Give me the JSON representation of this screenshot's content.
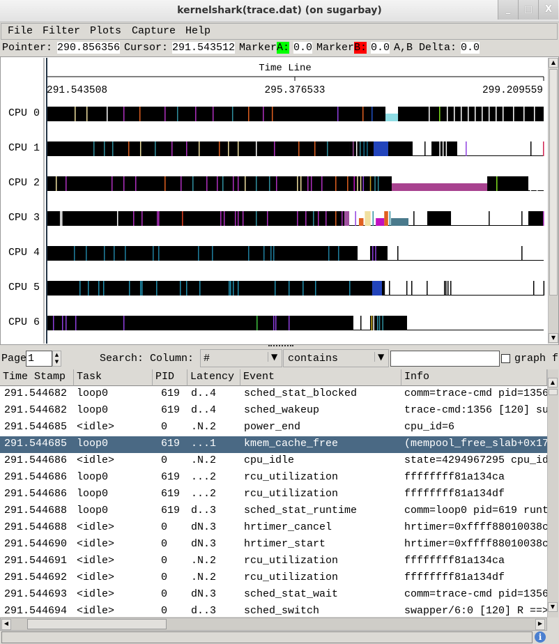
{
  "window": {
    "title": "kernelshark(trace.dat) (on sugarbay)",
    "minimize": "_",
    "maximize": "□",
    "close": "X"
  },
  "menu": [
    "File",
    "Filter",
    "Plots",
    "Capture",
    "Help"
  ],
  "info": {
    "pointer_label": "Pointer:",
    "pointer": "290.856356",
    "cursor_label": "Cursor:",
    "cursor": "291.543512",
    "markerA_label": "Marker",
    "markerA_tag": "A:",
    "markerA": "0.0",
    "markerB_label": "Marker",
    "markerB_tag": "B:",
    "markerB": "0.0",
    "delta_label": "A,B Delta:",
    "delta": "0.0",
    "markerA_color": "#00ff00",
    "markerB_color": "#ff0000"
  },
  "graph": {
    "timeline_title": "Time Line",
    "time_range": [
      291.543508,
      299.209559
    ],
    "tick_labels": [
      "291.543508",
      "295.376533",
      "299.209559"
    ],
    "cpus": [
      {
        "label": "CPU 0",
        "segments": [
          [
            291.5435,
            296.769,
            "#000000"
          ],
          [
            296.769,
            296.963,
            "#8fdce4",
            "half"
          ],
          [
            296.963,
            299.2095,
            "#000000"
          ]
        ],
        "ticks": [
          [
            291.974,
            "#f0e0a0"
          ],
          [
            292.156,
            "#f0e0a0"
          ],
          [
            292.468,
            "#ffffff"
          ],
          [
            292.726,
            "#b030c0"
          ],
          [
            292.973,
            "#e06020"
          ],
          [
            293.361,
            "#b030c0"
          ],
          [
            293.554,
            "#3090a0"
          ],
          [
            293.834,
            "#b030c0"
          ],
          [
            294.102,
            "#b030c0"
          ],
          [
            294.403,
            "#3090a0"
          ],
          [
            294.651,
            "#e06020"
          ],
          [
            294.877,
            "#b030c0"
          ],
          [
            295.016,
            "#e06020"
          ],
          [
            296.027,
            "#9040e0"
          ],
          [
            296.414,
            "#e06020"
          ],
          [
            296.554,
            "#2050c0"
          ],
          [
            297.436,
            "#ffffff"
          ],
          [
            297.597,
            "#80e020"
          ],
          [
            297.715,
            "#ffffff"
          ],
          [
            297.823,
            "#ffffff"
          ],
          [
            297.93,
            "#ffffff"
          ],
          [
            298.038,
            "#ffffff"
          ],
          [
            298.145,
            "#ffffff"
          ],
          [
            298.253,
            "#ffffff"
          ],
          [
            298.36,
            "#ffffff"
          ],
          [
            298.468,
            "#ffffff"
          ],
          [
            298.575,
            "#ffffff"
          ],
          [
            298.737,
            "#ffffff"
          ],
          [
            298.898,
            "#ffffff"
          ],
          [
            299.059,
            "#ffffff"
          ]
        ]
      },
      {
        "label": "CPU 1",
        "segments": [
          [
            291.5435,
            296.21,
            "#000000"
          ],
          [
            296.21,
            296.586,
            "#000000"
          ],
          [
            296.586,
            296.812,
            "#2244bb"
          ],
          [
            296.812,
            297.188,
            "#000000"
          ],
          [
            297.479,
            297.876,
            "#000000"
          ]
        ],
        "ticks": [
          [
            292.264,
            "#3090a0"
          ],
          [
            292.425,
            "#3090a0"
          ],
          [
            292.554,
            "#3090a0"
          ],
          [
            292.801,
            "#e06020"
          ],
          [
            292.984,
            "#f0e0a0"
          ],
          [
            293.21,
            "#3090a0"
          ],
          [
            293.468,
            "#b030c0"
          ],
          [
            293.694,
            "#b030c0"
          ],
          [
            293.887,
            "#f0e0a0"
          ],
          [
            294.199,
            "#e06020"
          ],
          [
            294.339,
            "#f0e0a0"
          ],
          [
            294.489,
            "#f0e0a0"
          ],
          [
            294.769,
            "#ffffff"
          ],
          [
            295.049,
            "#b030c0"
          ],
          [
            295.425,
            "#e06020"
          ],
          [
            295.672,
            "#e06020"
          ],
          [
            295.866,
            "#3090a0"
          ],
          [
            296.264,
            "#a050a0"
          ],
          [
            296.317,
            "#ffffff"
          ],
          [
            296.371,
            "#3090a0"
          ],
          [
            296.43,
            "#107090"
          ],
          [
            296.48,
            "#107090"
          ],
          [
            297.371,
            "#000000"
          ],
          [
            297.6,
            "#ffffff"
          ],
          [
            297.65,
            "#ffffff"
          ],
          [
            297.7,
            "#ffffff"
          ],
          [
            298.006,
            "#9040e0"
          ],
          [
            299.005,
            "#000000"
          ],
          [
            299.199,
            "#d02050"
          ]
        ]
      },
      {
        "label": "CPU 2",
        "segments": [
          [
            291.5435,
            296.264,
            "#000000"
          ],
          [
            296.264,
            296.866,
            "#000000"
          ],
          [
            296.866,
            298.339,
            "#a8428f",
            "half"
          ],
          [
            298.339,
            298.973,
            "#000000"
          ]
        ],
        "ticks": [
          [
            291.683,
            "#f0e0a0"
          ],
          [
            291.834,
            "#b030c0"
          ],
          [
            292.543,
            "#b030c0"
          ],
          [
            292.726,
            "#b030c0"
          ],
          [
            292.909,
            "#b030c0"
          ],
          [
            293.361,
            "#e06020"
          ],
          [
            293.608,
            "#b030c0"
          ],
          [
            293.791,
            "#3090a0"
          ],
          [
            294.006,
            "#b030c0"
          ],
          [
            294.167,
            "#b030c0"
          ],
          [
            294.253,
            "#3090a0"
          ],
          [
            294.414,
            "#b030c0"
          ],
          [
            294.489,
            "#b030c0"
          ],
          [
            294.597,
            "#f0e0a0"
          ],
          [
            294.769,
            "#3090a0"
          ],
          [
            294.973,
            "#3090a0"
          ],
          [
            295.081,
            "#b030c0"
          ],
          [
            295.404,
            "#f0e0a0"
          ],
          [
            295.457,
            "#f0e0a0"
          ],
          [
            295.565,
            "#b030c0"
          ],
          [
            295.618,
            "#b030c0"
          ],
          [
            295.78,
            "#b030c0"
          ],
          [
            295.995,
            "#e06020"
          ],
          [
            296.178,
            "#e06020"
          ],
          [
            296.28,
            "#c010c0"
          ],
          [
            296.33,
            "#f0e0a0"
          ],
          [
            296.38,
            "#f0e0a0"
          ],
          [
            296.42,
            "#9040e0"
          ],
          [
            296.53,
            "#c8a020"
          ],
          [
            296.6,
            "#3090a0"
          ],
          [
            296.65,
            "#3090a0"
          ],
          [
            298.479,
            "#80e020"
          ],
          [
            299.0,
            "#ffffff"
          ],
          [
            299.1,
            "#ffffff"
          ]
        ]
      },
      {
        "label": "CPU 3",
        "segments": [
          [
            291.5435,
            296.135,
            "#000000"
          ],
          [
            296.135,
            296.21,
            "#a050a0"
          ],
          [
            296.36,
            296.43,
            "#e06020",
            "half"
          ],
          [
            296.45,
            296.54,
            "#f0e0a0"
          ],
          [
            296.62,
            296.75,
            "#c010c0",
            "half"
          ],
          [
            296.75,
            296.81,
            "#e06020"
          ],
          [
            296.855,
            297.124,
            "#4a7a8c",
            "half"
          ],
          [
            297.414,
            297.78,
            "#000000"
          ],
          [
            298.973,
            299.2095,
            "#000000"
          ]
        ],
        "ticks": [
          [
            291.748,
            "#ffffff"
          ],
          [
            291.769,
            "#ffffff"
          ],
          [
            292.629,
            "#ffffff"
          ],
          [
            292.877,
            "#b030c0"
          ],
          [
            293.006,
            "#b030c0"
          ],
          [
            293.243,
            "#b030c0"
          ],
          [
            293.264,
            "#b030c0"
          ],
          [
            293.63,
            "#e04020"
          ],
          [
            294.221,
            "#b030c0"
          ],
          [
            294.274,
            "#b030c0"
          ],
          [
            294.446,
            "#b030c0"
          ],
          [
            294.489,
            "#b030c0"
          ],
          [
            294.564,
            "#b030c0"
          ],
          [
            294.769,
            "#3090a0"
          ],
          [
            294.941,
            "#b030c0"
          ],
          [
            295.404,
            "#b030c0"
          ],
          [
            295.533,
            "#b030c0"
          ],
          [
            295.651,
            "#3090a0"
          ],
          [
            295.726,
            "#b030c0"
          ],
          [
            295.844,
            "#b030c0"
          ],
          [
            295.995,
            "#e06020"
          ],
          [
            296.092,
            "#b030c0"
          ],
          [
            296.3,
            "#9040e0"
          ],
          [
            296.57,
            "#3090a0"
          ],
          [
            296.83,
            "#3090a0"
          ],
          [
            297.2,
            "#000000"
          ],
          [
            298.361,
            "#000000"
          ],
          [
            298.866,
            "#000000"
          ],
          [
            299.2,
            "#b030c0"
          ]
        ]
      },
      {
        "label": "CPU 4",
        "segments": [
          [
            291.5435,
            296.339,
            "#000000"
          ],
          [
            296.532,
            296.801,
            "#000000"
          ]
        ],
        "ticks": [
          [
            291.963,
            "#2080a0"
          ],
          [
            292.146,
            "#2080a0"
          ],
          [
            292.425,
            "#2080a0"
          ],
          [
            292.576,
            "#2080a0"
          ],
          [
            292.748,
            "#2080a0"
          ],
          [
            293.178,
            "#2080a0"
          ],
          [
            293.264,
            "#2080a0"
          ],
          [
            293.877,
            "#2080a0"
          ],
          [
            294.092,
            "#2080a0"
          ],
          [
            294.651,
            "#2080a0"
          ],
          [
            294.887,
            "#2080a0"
          ],
          [
            294.995,
            "#2080a0"
          ],
          [
            295.038,
            "#2080a0"
          ],
          [
            295.887,
            "#2080a0"
          ],
          [
            296.038,
            "#2080a0"
          ],
          [
            296.565,
            "#9040e0"
          ],
          [
            296.61,
            "#9040e0"
          ],
          [
            296.952,
            "#000000"
          ],
          [
            298.866,
            "#000000"
          ]
        ]
      },
      {
        "label": "CPU 5",
        "segments": [
          [
            291.5435,
            296.565,
            "#000000"
          ],
          [
            296.565,
            296.715,
            "#2244bb"
          ],
          [
            296.715,
            296.76,
            "#000000"
          ]
        ],
        "ticks": [
          [
            292.049,
            "#2090b0"
          ],
          [
            292.178,
            "#2090b0"
          ],
          [
            292.339,
            "#2090b0"
          ],
          [
            292.414,
            "#2090b0"
          ],
          [
            292.812,
            "#2090b0"
          ],
          [
            292.984,
            "#2090b0"
          ],
          [
            293.006,
            "#2090b0"
          ],
          [
            293.232,
            "#2090b0"
          ],
          [
            293.597,
            "#2090b0"
          ],
          [
            293.694,
            "#2090b0"
          ],
          [
            293.898,
            "#2090b0"
          ],
          [
            294.35,
            "#2090b0"
          ],
          [
            294.371,
            "#2090b0"
          ],
          [
            294.414,
            "#2090b0"
          ],
          [
            294.489,
            "#2090b0"
          ],
          [
            295.059,
            "#2090b0"
          ],
          [
            295.274,
            "#2090b0"
          ],
          [
            295.49,
            "#2090b0"
          ],
          [
            295.683,
            "#2090b0"
          ],
          [
            296.21,
            "#2090b0"
          ],
          [
            296.823,
            "#000000"
          ],
          [
            297.091,
            "#000000"
          ],
          [
            297.167,
            "#000000"
          ],
          [
            297.404,
            "#000000"
          ],
          [
            297.672,
            "#000000"
          ],
          [
            297.694,
            "#000000"
          ],
          [
            297.726,
            "#000000"
          ],
          [
            297.769,
            "#000000"
          ],
          [
            299.048,
            "#000000"
          ],
          [
            299.205,
            "#000000"
          ]
        ]
      },
      {
        "label": "CPU 6",
        "segments": [
          [
            291.5435,
            296.274,
            "#000000"
          ],
          [
            296.532,
            297.102,
            "#000000"
          ]
        ],
        "ticks": [
          [
            291.64,
            "#9040e0"
          ],
          [
            291.78,
            "#9040e0"
          ],
          [
            291.834,
            "#9040e0"
          ],
          [
            291.984,
            "#9040e0"
          ],
          [
            292.726,
            "#9040e0"
          ],
          [
            294.78,
            "#40c040"
          ],
          [
            295.038,
            "#9040e0"
          ],
          [
            295.07,
            "#9040e0"
          ],
          [
            295.274,
            "#9040e0"
          ],
          [
            296.382,
            "#000000"
          ],
          [
            296.55,
            "#e0c020"
          ],
          [
            296.58,
            "#ffffff"
          ],
          [
            296.64,
            "#3090a0"
          ],
          [
            296.67,
            "#3090a0"
          ],
          [
            296.72,
            "#3090a0"
          ]
        ]
      }
    ]
  },
  "search": {
    "page_label": "Page",
    "page": "1",
    "search_label": "Search: Column:",
    "column": "#",
    "mode": "contains",
    "text": "",
    "graph_label": "graph f"
  },
  "table": {
    "columns": [
      "Time Stamp",
      "Task",
      "PID",
      "Latency",
      "Event",
      "Info"
    ],
    "selected_row": 3,
    "rows": [
      [
        "291.544682",
        "loop0",
        "619",
        "d..4",
        "sched_stat_blocked",
        "comm=trace-cmd pid=1356"
      ],
      [
        "291.544682",
        "loop0",
        "619",
        "d..4",
        "sched_wakeup",
        "trace-cmd:1356 [120] su"
      ],
      [
        "291.544685",
        "<idle>",
        "0",
        ".N.2",
        "power_end",
        "cpu_id=6"
      ],
      [
        "291.544685",
        "loop0",
        "619",
        "...1",
        "kmem_cache_free",
        "(mempool_free_slab+0x17"
      ],
      [
        "291.544686",
        "<idle>",
        "0",
        ".N.2",
        "cpu_idle",
        "state=4294967295 cpu_id"
      ],
      [
        "291.544686",
        "loop0",
        "619",
        "...2",
        "rcu_utilization",
        "ffffffff81a134ca"
      ],
      [
        "291.544686",
        "loop0",
        "619",
        "...2",
        "rcu_utilization",
        "ffffffff81a134df"
      ],
      [
        "291.544688",
        "loop0",
        "619",
        "d..3",
        "sched_stat_runtime",
        "comm=loop0 pid=619 runt"
      ],
      [
        "291.544688",
        "<idle>",
        "0",
        "dN.3",
        "hrtimer_cancel",
        "hrtimer=0xffff88010038c"
      ],
      [
        "291.544690",
        "<idle>",
        "0",
        "dN.3",
        "hrtimer_start",
        "hrtimer=0xffff88010038c"
      ],
      [
        "291.544691",
        "<idle>",
        "0",
        ".N.2",
        "rcu_utilization",
        "ffffffff81a134ca"
      ],
      [
        "291.544692",
        "<idle>",
        "0",
        ".N.2",
        "rcu_utilization",
        "ffffffff81a134df"
      ],
      [
        "291.544693",
        "<idle>",
        "0",
        "dN.3",
        "sched_stat_wait",
        "comm=trace-cmd pid=1356"
      ],
      [
        "291.544694",
        "<idle>",
        "0",
        "d..3",
        "sched_switch",
        "swapper/6:0 [120] R ==>"
      ]
    ]
  },
  "status": {
    "icon": "info-icon"
  }
}
